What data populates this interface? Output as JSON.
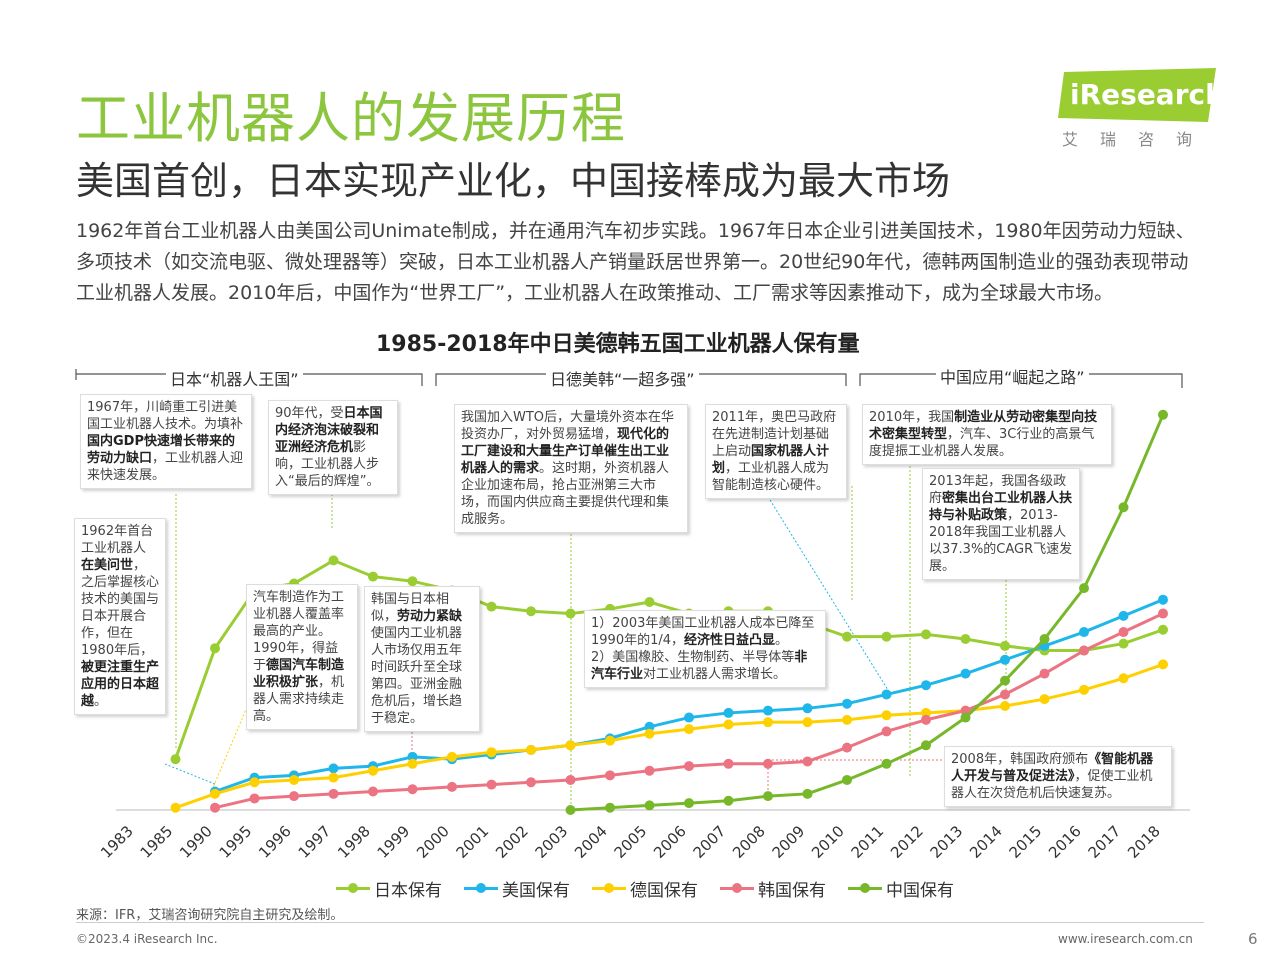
{
  "title": "工业机器人的发展历程",
  "subtitle": "美国首创，日本实现产业化，中国接棒成为最大市场",
  "description": "1962年首台工业机器人由美国公司Unimate制成，并在通用汽车初步实践。1967年日本企业引进美国技术，1980年因劳动力短缺、多项技术（如交流电驱、微处理器等）突破，日本工业机器人产销量跃居世界第一。20世纪90年代，德韩两国制造业的强劲表现带动工业机器人发展。2010年后，中国作为“世界工厂”，工业机器人在政策推动、工厂需求等因素推动下，成为全球最大市场。",
  "logo": {
    "text": "iResearch",
    "cn": "艾瑞咨询"
  },
  "phases": [
    "日本“机器人王国”",
    "日德美韩“一超多强”",
    "中国应用“崛起之路”"
  ],
  "annotations": {
    "a1967": [
      "1967年，川崎重工引进美国工业机器人技术。为填补",
      "国内GDP快速增长带来的劳动力缺口",
      "，工业机器人迎来快速发展。"
    ],
    "a1990s": [
      "90年代，受",
      "日本国内经济泡沫破裂和亚洲经济危机",
      "影响，工业机器人步入“最后的辉煌”。"
    ],
    "aWTO": [
      "我国加入WTO后，大量境外资本在华投资办厂，对外贸易猛增，",
      "现代化的工厂建设和大量生产订单催生出工业机器人的需求",
      "。这时期，外资机器人企业加速布局，抢占亚洲第三大市场，而国内供应商主要提供代理和集成服务。"
    ],
    "a2011": [
      "2011年，奥巴马政府在先进制造计划基础上启动",
      "国家机器人计划",
      "，工业机器人成为智能制造核心硬件。"
    ],
    "a2010": [
      "2010年，我国",
      "制造业从劳动密集型向技术密集型转型",
      "，汽车、3C行业的高景气度提振工业机器人发展。"
    ],
    "a2013": [
      "2013年起，我国各级政府",
      "密集出台工业机器人扶持与补贴政策",
      "，2013-2018年我国工业机器人以37.3%的CAGR飞速发展。"
    ],
    "a1962": [
      "1962年首台工业机器人",
      "在美问世",
      "，之后掌握核心技术的美国与日本开展合作，但在1980年后，",
      "被更注重生产应用的日本超越",
      "。"
    ],
    "aCar": [
      "汽车制造作为工业机器人覆盖率最高的产业。1990年，得益于",
      "德国汽车制造业积极扩张",
      "，机器人需求持续走高。"
    ],
    "aKorea": [
      "韩国与日本相似，",
      "劳动力紧缺",
      "使国内工业机器人市场仅用五年时间跃升至全球第四。亚洲金融危机后，增长趋于稳定。"
    ],
    "aUS": [
      "1）2003年美国工业机器人成本已降至1990年的1/4，",
      "经济性日益凸显",
      "。",
      "2）美国橡胶、生物制药、半导体等",
      "非汽车行业",
      "对工业机器人需求增长。"
    ],
    "aKorea2008": [
      "2008年，韩国政府颁布",
      "《智能机器人开发与普及促进法》",
      "，促使工业机器人在次贷危机后快速复苏。"
    ]
  },
  "chart_data": {
    "type": "line",
    "title": "1985-2018年中日美德韩五国工业机器人保有量",
    "categories": [
      "1983",
      "1985",
      "1990",
      "1995",
      "1996",
      "1997",
      "1998",
      "1999",
      "2000",
      "2001",
      "2002",
      "2003",
      "2004",
      "2005",
      "2006",
      "2007",
      "2008",
      "2009",
      "2010",
      "2011",
      "2012",
      "2013",
      "2014",
      "2015",
      "2016",
      "2017",
      "2018"
    ],
    "series": [
      {
        "name": "日本保有",
        "color": "#9acd32",
        "values": [
          null,
          22,
          70,
          95,
          98,
          108,
          101,
          99,
          95,
          88,
          86,
          85,
          87,
          90,
          85,
          86,
          86,
          81,
          75,
          75,
          76,
          74,
          71,
          69,
          69,
          72,
          78
        ]
      },
      {
        "name": "美国保有",
        "color": "#1fb6ea",
        "values": [
          null,
          null,
          8,
          14,
          15,
          18,
          19,
          23,
          22,
          24,
          26,
          28,
          31,
          36,
          40,
          42,
          43,
          44,
          46,
          50,
          54,
          59,
          65,
          71,
          77,
          84,
          91
        ]
      },
      {
        "name": "德国保有",
        "color": "#ffd000",
        "values": [
          null,
          1,
          7,
          12,
          13,
          14,
          17,
          20,
          23,
          25,
          26,
          28,
          30,
          33,
          35,
          37,
          38,
          38,
          39,
          41,
          42,
          43,
          45,
          48,
          52,
          57,
          63
        ]
      },
      {
        "name": "韩国保有",
        "color": "#ec7381",
        "values": [
          null,
          null,
          1,
          5,
          6,
          7,
          8,
          9,
          10,
          11,
          12,
          13,
          15,
          17,
          19,
          20,
          20,
          21,
          27,
          34,
          39,
          43,
          50,
          59,
          69,
          77,
          85
        ]
      },
      {
        "name": "中国保有",
        "color": "#77b82a",
        "values": [
          null,
          null,
          null,
          null,
          null,
          null,
          null,
          null,
          null,
          null,
          null,
          0,
          1,
          2,
          3,
          4,
          6,
          7,
          13,
          20,
          28,
          40,
          56,
          74,
          96,
          131,
          171
        ]
      }
    ],
    "xlabel": "",
    "ylabel": "",
    "ylim": [
      0,
      180
    ],
    "grid": false,
    "legend": "bottom"
  },
  "footer": {
    "source": "来源：IFR，艾瑞咨询研究院自主研究及绘制。",
    "copyright": "©2023.4 iResearch Inc.",
    "url": "www.iresearch.com.cn",
    "page": "6"
  }
}
